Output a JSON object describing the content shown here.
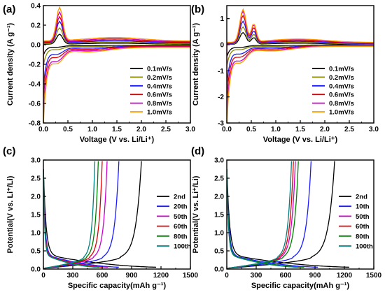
{
  "chart_data": [
    {
      "type": "line",
      "panel_label": "(a)",
      "xlabel": "Voltage (V vs. Li/Li⁺)",
      "ylabel": "Current density (A g⁻¹)",
      "xlim": [
        0,
        3.0
      ],
      "ylim": [
        -0.8,
        0.4
      ],
      "xticks": [
        "0.0",
        "0.5",
        "1.0",
        "1.5",
        "2.0",
        "2.5",
        "3.0"
      ],
      "yticks": [
        "-0.8",
        "-0.6",
        "-0.4",
        "-0.2",
        "0.0",
        "0.2",
        "0.4"
      ],
      "legend_position": "bottom-right",
      "series": [
        {
          "name": "0.1mV/s",
          "color": "#000000",
          "peak": 0.1,
          "min": -0.1,
          "loop": 0.01
        },
        {
          "name": "0.2mV/s",
          "color": "#8c8c00",
          "peak": 0.16,
          "min": -0.2,
          "loop": 0.018
        },
        {
          "name": "0.4mV/s",
          "color": "#1a1aff",
          "peak": 0.22,
          "min": -0.4,
          "loop": 0.03
        },
        {
          "name": "0.6mV/s",
          "color": "#e00000",
          "peak": 0.26,
          "min": -0.52,
          "loop": 0.042
        },
        {
          "name": "0.8mV/s",
          "color": "#cc00cc",
          "peak": 0.3,
          "min": -0.68,
          "loop": 0.055
        },
        {
          "name": "1.0mV/s",
          "color": "#ff9900",
          "peak": 0.34,
          "min": -0.76,
          "loop": 0.07
        }
      ]
    },
    {
      "type": "line",
      "panel_label": "(b)",
      "xlabel": "Voltage (V vs. Li/Li⁺)",
      "ylabel": "Current density (A g⁻¹)",
      "xlim": [
        0,
        3.0
      ],
      "ylim": [
        -3,
        1.5
      ],
      "xticks": [
        "0.0",
        "0.5",
        "1.0",
        "1.5",
        "2.0",
        "2.5",
        "3.0"
      ],
      "yticks": [
        "-3",
        "-2",
        "-1",
        "0",
        "1"
      ],
      "legend_position": "bottom-right",
      "series": [
        {
          "name": "0.1mV/s",
          "color": "#000000",
          "peak": 0.45,
          "min": -0.45,
          "loop": 0.02
        },
        {
          "name": "0.2mV/s",
          "color": "#8c8c00",
          "peak": 0.65,
          "min": -0.8,
          "loop": 0.04
        },
        {
          "name": "0.4mV/s",
          "color": "#1a1aff",
          "peak": 0.85,
          "min": -1.5,
          "loop": 0.07
        },
        {
          "name": "0.6mV/s",
          "color": "#e00000",
          "peak": 1.05,
          "min": -2.0,
          "loop": 0.1
        },
        {
          "name": "0.8mV/s",
          "color": "#cc00cc",
          "peak": 1.2,
          "min": -2.6,
          "loop": 0.13
        },
        {
          "name": "1.0mV/s",
          "color": "#ff9900",
          "peak": 1.25,
          "min": -2.9,
          "loop": 0.16
        }
      ]
    },
    {
      "type": "line",
      "panel_label": "(c)",
      "xlabel": "Specific capacity(mAh g⁻¹)",
      "ylabel": "Potential(V vs. Li⁺/Li)",
      "xlim": [
        0,
        1500
      ],
      "ylim": [
        0,
        3.0
      ],
      "xticks": [
        "0",
        "300",
        "600",
        "900",
        "1200",
        "1500"
      ],
      "yticks": [
        "0.0",
        "0.5",
        "1.0",
        "1.5",
        "2.0",
        "2.5",
        "3.0"
      ],
      "legend_position": "right",
      "series": [
        {
          "name": "2nd",
          "color": "#000000",
          "charge": 1000,
          "discharge": 1150
        },
        {
          "name": "20th",
          "color": "#1a1aff",
          "charge": 770,
          "discharge": 770
        },
        {
          "name": "50th",
          "color": "#cc00cc",
          "charge": 650,
          "discharge": 660
        },
        {
          "name": "60th",
          "color": "#e00000",
          "charge": 600,
          "discharge": 610
        },
        {
          "name": "80th",
          "color": "#008000",
          "charge": 560,
          "discharge": 570
        },
        {
          "name": "100th",
          "color": "#008080",
          "charge": 525,
          "discharge": 535
        }
      ]
    },
    {
      "type": "line",
      "panel_label": "(d)",
      "xlabel": "Specific capacity(mAh g⁻¹)",
      "ylabel": "Potential(V vs. Li⁺/Li)",
      "xlim": [
        0,
        1500
      ],
      "ylim": [
        0,
        3.0
      ],
      "xticks": [
        "0",
        "300",
        "600",
        "900",
        "1200",
        "1500"
      ],
      "yticks": [
        "0.0",
        "0.5",
        "1.0",
        "1.5",
        "2.0",
        "2.5",
        "3.0"
      ],
      "legend_position": "right",
      "series": [
        {
          "name": "2nd",
          "color": "#000000",
          "charge": 1100,
          "discharge": 1250
        },
        {
          "name": "10th",
          "color": "#1a1aff",
          "charge": 860,
          "discharge": 930
        },
        {
          "name": "50th",
          "color": "#cc00cc",
          "charge": 700,
          "discharge": 760
        },
        {
          "name": "60th",
          "color": "#e00000",
          "charge": 680,
          "discharge": 740
        },
        {
          "name": "80th",
          "color": "#008000",
          "charge": 730,
          "discharge": 790
        },
        {
          "name": "100th",
          "color": "#008080",
          "charge": 660,
          "discharge": 720
        }
      ]
    }
  ]
}
